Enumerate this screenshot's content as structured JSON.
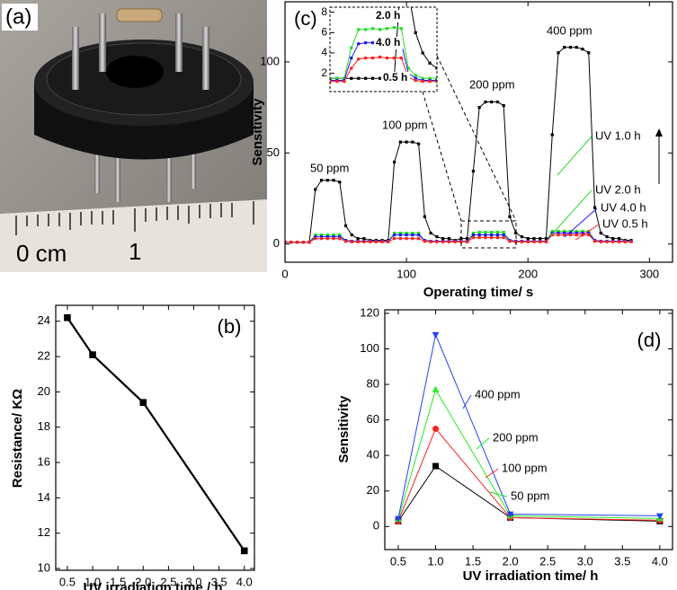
{
  "photo": {
    "panel_label": "(a)",
    "ruler_labels": [
      "0 cm",
      "1"
    ]
  },
  "chart_data": [
    {
      "type": "line",
      "panel_label": "(c)",
      "x_label": "Operating time/ s",
      "y_label": "Sensitivity",
      "x": [
        0,
        5,
        10,
        15,
        20,
        25,
        30,
        35,
        40,
        45,
        50,
        55,
        60,
        65,
        70,
        75,
        80,
        85,
        90,
        95,
        100,
        105,
        110,
        115,
        120,
        125,
        130,
        135,
        140,
        145,
        150,
        155,
        160,
        165,
        170,
        175,
        180,
        185,
        190,
        195,
        200,
        205,
        210,
        215,
        220,
        225,
        230,
        235,
        240,
        245,
        250,
        255,
        260,
        265,
        270,
        275,
        280,
        285
      ],
      "series": [
        {
          "name": "UV 1.0 h",
          "color": "#000000",
          "marker": "square",
          "values": [
            1,
            1,
            1,
            1,
            1,
            30,
            35,
            35,
            35,
            34,
            10,
            5,
            3,
            3,
            2,
            2,
            2,
            2,
            45,
            56,
            56,
            56,
            55,
            15,
            6,
            4,
            3,
            3,
            2,
            3,
            3,
            40,
            75,
            78,
            78,
            78,
            76,
            15,
            6,
            4,
            3,
            3,
            3,
            3,
            60,
            105,
            108,
            108,
            108,
            107,
            105,
            20,
            6,
            4,
            3,
            3,
            2,
            2
          ]
        },
        {
          "name": "UV 2.0 h",
          "color": "#22dd22",
          "marker": "square",
          "values": [
            1,
            1,
            1,
            1,
            1,
            5,
            5,
            5,
            5,
            5,
            2,
            1.5,
            1.5,
            1.5,
            1.5,
            1.5,
            1.5,
            1.5,
            6,
            6,
            6,
            6,
            6,
            2,
            1.5,
            1.5,
            1.5,
            1.5,
            1.5,
            1.5,
            1.5,
            6,
            6.5,
            6.5,
            6.5,
            6.5,
            6.5,
            2,
            1.5,
            1.5,
            1.5,
            1.5,
            1.5,
            1.5,
            7,
            7,
            7,
            7,
            7,
            7,
            7,
            2,
            1.5,
            1.5,
            1.5,
            1.5,
            1.5,
            1.5
          ]
        },
        {
          "name": "UV 4.0 h",
          "color": "#1a1aff",
          "marker": "square",
          "values": [
            1,
            1,
            1,
            1,
            1,
            4,
            4,
            4,
            4,
            4,
            2,
            1.5,
            1.5,
            1.5,
            1.5,
            1.5,
            1.5,
            1.5,
            5,
            5,
            5,
            5,
            5,
            2,
            1.5,
            1.5,
            1.5,
            1.5,
            1.5,
            1.5,
            1.5,
            5,
            5,
            5,
            5,
            5,
            5,
            2,
            1.5,
            1.5,
            1.5,
            1.5,
            1.5,
            1.5,
            6,
            6,
            6,
            6,
            6,
            6,
            6,
            2,
            1.5,
            1.5,
            1.5,
            1.5,
            1.5,
            1.5
          ]
        },
        {
          "name": "UV 0.5 h",
          "color": "#ff2020",
          "marker": "square",
          "values": [
            1,
            1,
            1,
            1,
            1,
            3,
            3,
            3,
            3,
            3,
            1.5,
            1.2,
            1.2,
            1.2,
            1.2,
            1.2,
            1.2,
            1.2,
            3,
            3,
            3,
            3,
            3,
            1.5,
            1.2,
            1.2,
            1.2,
            1.2,
            1.2,
            1.2,
            1.2,
            3.5,
            3.5,
            3.5,
            3.5,
            3.5,
            3.5,
            1.5,
            1.2,
            1.2,
            1.2,
            1.2,
            1.2,
            1.2,
            5,
            5,
            5,
            5,
            5,
            5,
            5,
            1.5,
            1.2,
            1.2,
            1.2,
            1.2,
            1.2,
            1.2
          ]
        }
      ],
      "xlim": [
        0,
        319
      ],
      "ylim": [
        -10,
        133
      ],
      "xticks": [
        0,
        100,
        200,
        300
      ],
      "yticks": [
        0,
        50,
        100
      ],
      "annotations": [
        "50 ppm",
        "100 ppm",
        "200 ppm",
        "400 ppm"
      ],
      "inset": {
        "x": [
          140,
          144,
          148,
          152,
          156,
          160,
          164,
          168,
          172,
          176,
          180,
          184,
          188,
          192,
          196,
          200
        ],
        "series": [
          {
            "color": "#000000",
            "marker": "square",
            "values": [
              1.5,
              1.5,
              1.5,
              1.5,
              1.5,
              1.5,
              1.5,
              1.5,
              1.5,
              1.5,
              12,
              10,
              6,
              4,
              3,
              2.5
            ]
          },
          {
            "name": "2.0 h",
            "color": "#22dd22",
            "marker": "square",
            "values": [
              1.5,
              1.5,
              1.5,
              4.5,
              6.3,
              6.3,
              6.4,
              6.3,
              6.4,
              6.5,
              6.4,
              2.5,
              1.8,
              1.5,
              1.5,
              1.5
            ]
          },
          {
            "name": "4.0 h",
            "color": "#1a1aff",
            "marker": "square",
            "values": [
              1.3,
              1.3,
              1.3,
              3.5,
              4.9,
              5,
              5,
              5,
              5.1,
              5,
              5,
              2,
              1.5,
              1.3,
              1.3,
              1.3
            ]
          },
          {
            "name": "0.5 h",
            "color": "#ff2020",
            "marker": "square",
            "values": [
              1.2,
              1.2,
              1.2,
              2.5,
              3.4,
              3.5,
              3.5,
              3.6,
              3.5,
              3.5,
              3.5,
              1.6,
              1.3,
              1.2,
              1.2,
              1.2
            ]
          }
        ],
        "xlim": [
          140,
          200
        ],
        "ylim": [
          0.2,
          8.5
        ],
        "yticks": [
          2,
          4,
          6,
          8
        ]
      }
    },
    {
      "type": "line",
      "panel_label": "(b)",
      "x_label": "UV irradiation time / h",
      "y_label": "Resistance/ KΩ",
      "x": [
        0.5,
        1,
        2,
        4
      ],
      "series": [
        {
          "color": "#000000",
          "marker": "square",
          "values": [
            24.2,
            22.1,
            19.4,
            11.0
          ]
        }
      ],
      "xlim": [
        0.27,
        4.2
      ],
      "ylim": [
        9.9,
        24.9
      ],
      "xticks": [
        0.5,
        {
          "value": 1,
          "label": "1.0"
        },
        1.5,
        {
          "value": 2,
          "label": "2.0"
        },
        2.5,
        {
          "value": 3,
          "label": "3.0"
        },
        3.5,
        {
          "value": 4,
          "label": "4.0"
        }
      ],
      "yticks": [
        10,
        12,
        14,
        16,
        18,
        20,
        22,
        24
      ]
    },
    {
      "type": "line",
      "panel_label": "(d)",
      "x_label": "UV irradiation time/ h",
      "y_label": "Sensitivity",
      "x": [
        0.5,
        1,
        2,
        4
      ],
      "series": [
        {
          "name": "50 ppm",
          "color": "#000000",
          "marker": "square",
          "values": [
            3,
            34,
            5,
            3
          ]
        },
        {
          "name": "100 ppm",
          "color": "#ff2020",
          "marker": "circle",
          "values": [
            3,
            55,
            5,
            3.5
          ]
        },
        {
          "name": "200 ppm",
          "color": "#22ee22",
          "marker": "triangle-up",
          "values": [
            4,
            77,
            6,
            4.5
          ]
        },
        {
          "name": "400 ppm",
          "color": "#2040ff",
          "marker": "triangle-down",
          "values": [
            4.5,
            108,
            7,
            6
          ]
        }
      ],
      "xlim": [
        0.32,
        4.17
      ],
      "ylim": [
        -13,
        122
      ],
      "xticks": [
        0.5,
        {
          "value": 1,
          "label": "1.0"
        },
        1.5,
        {
          "value": 2,
          "label": "2.0"
        },
        2.5,
        {
          "value": 3,
          "label": "3.0"
        },
        3.5,
        {
          "value": 4,
          "label": "4.0"
        }
      ],
      "yticks": [
        0,
        20,
        40,
        60,
        80,
        100,
        120
      ]
    }
  ]
}
